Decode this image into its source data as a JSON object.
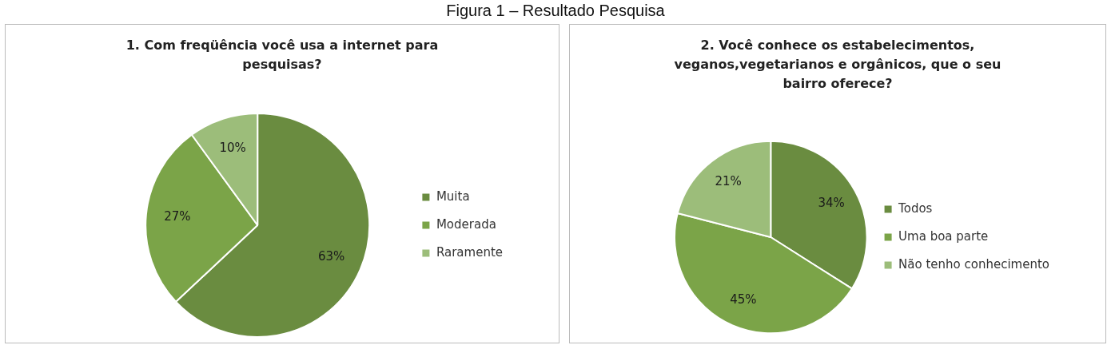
{
  "chart_data": [
    {
      "type": "pie",
      "title": "1. Com freqüência você usa a internet para pesquisas?",
      "annotations": [
        "Figura 1 – Resultado Pesquisa"
      ],
      "categories": [
        "Muita",
        "Moderada",
        "Raramente"
      ],
      "values": [
        63,
        27,
        10
      ],
      "value_labels": [
        "63%",
        "27%",
        "10%"
      ],
      "colors": [
        "#6a8c40",
        "#7ba448",
        "#9cbd7a"
      ],
      "legend": "right"
    },
    {
      "type": "pie",
      "title": "2. Você conhece os estabelecimentos, veganos,vegetarianos e orgânicos, que o seu bairro oferece?",
      "categories": [
        "Todos",
        "Uma boa parte",
        "Não tenho conhecimento"
      ],
      "values": [
        34,
        45,
        21
      ],
      "value_labels": [
        "34%",
        "45%",
        "21%"
      ],
      "colors": [
        "#6a8c40",
        "#7ba448",
        "#9cbd7a"
      ],
      "legend": "right"
    }
  ]
}
